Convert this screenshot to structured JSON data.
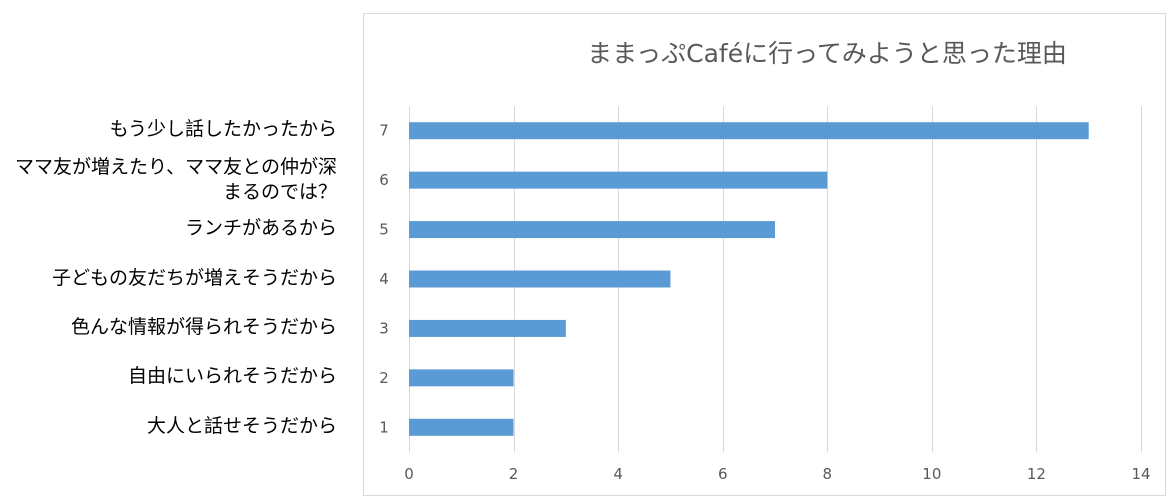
{
  "chart_data": {
    "type": "bar",
    "orientation": "horizontal",
    "title": "ままっぷCaféに行ってみようと思った理由",
    "xlabel": "",
    "ylabel": "",
    "xlim": [
      0,
      14
    ],
    "x_ticks": [
      "0",
      "2",
      "4",
      "6",
      "8",
      "10",
      "12",
      "14"
    ],
    "categories": [
      "1",
      "2",
      "3",
      "4",
      "5",
      "6",
      "7"
    ],
    "values": [
      2,
      2,
      3,
      5,
      7,
      8,
      13
    ],
    "category_descriptions": [
      "大人と話せそうだから",
      "自由にいられそうだから",
      "色んな情報が得られそうだから",
      "子どもの友だちが増えそうだから",
      "ランチがあるから",
      "ママ友が増えたり、ママ友との仲が深まるのでは？",
      "もう少し話したかったから"
    ],
    "grid": "vertical",
    "legend": "none",
    "colors": {
      "bar": "#5b9bd5",
      "grid": "#d9d9d9",
      "border": "#d9d9d9",
      "tick_text": "#595959",
      "title_text": "#595959"
    }
  }
}
